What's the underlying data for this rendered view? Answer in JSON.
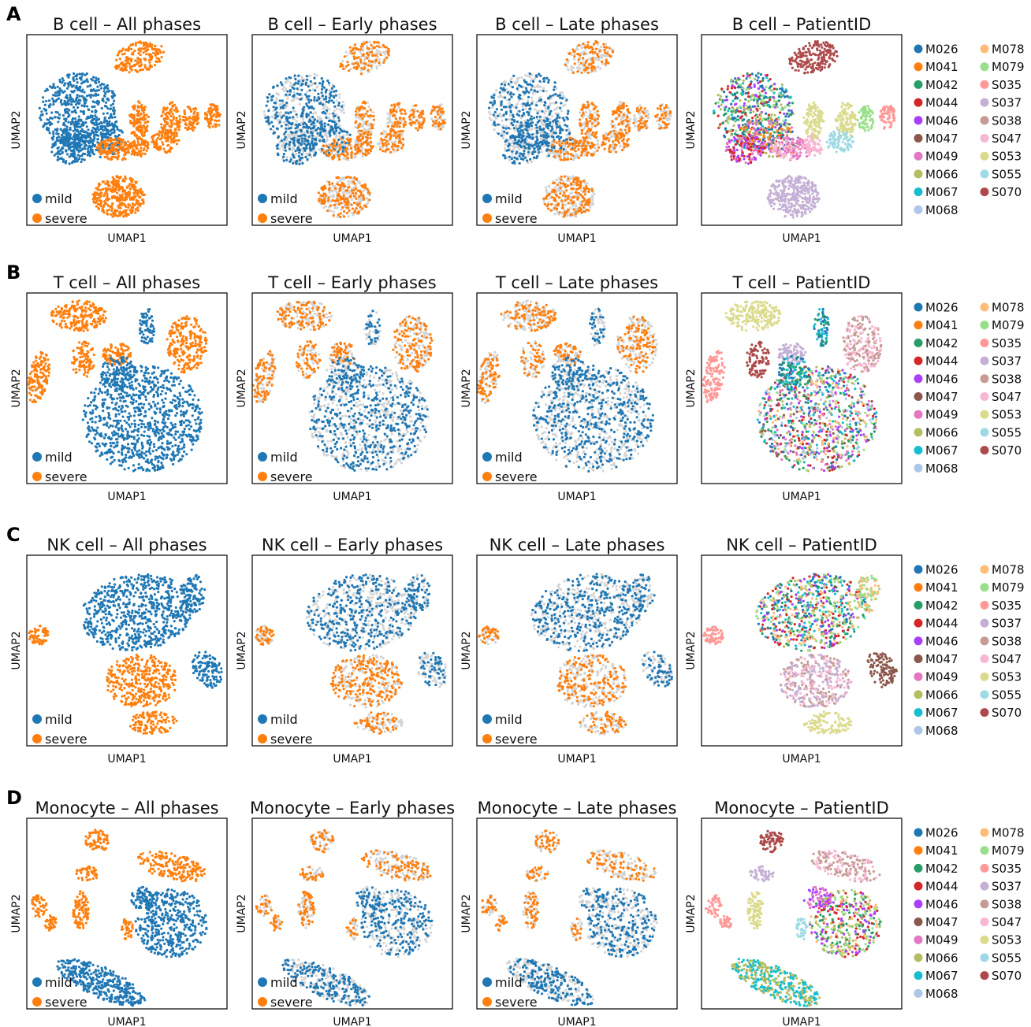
{
  "chart_data": {
    "type": "scatter",
    "xlabel": "UMAP1",
    "ylabel": "UMAP2",
    "condition_legend": [
      {
        "name": "mild",
        "color": "#1f77b4"
      },
      {
        "name": "severe",
        "color": "#ff7f0e"
      }
    ],
    "background_color": "#d3d3d3",
    "patients": [
      {
        "id": "M026",
        "color": "#1f77b4"
      },
      {
        "id": "M041",
        "color": "#ff7f0e"
      },
      {
        "id": "M042",
        "color": "#279e68"
      },
      {
        "id": "M044",
        "color": "#d62728"
      },
      {
        "id": "M046",
        "color": "#aa40fc"
      },
      {
        "id": "M047",
        "color": "#8c564b"
      },
      {
        "id": "M049",
        "color": "#e377c2"
      },
      {
        "id": "M066",
        "color": "#b5bd61"
      },
      {
        "id": "M067",
        "color": "#17becf"
      },
      {
        "id": "M068",
        "color": "#aec7e8"
      },
      {
        "id": "M078",
        "color": "#ffbb78"
      },
      {
        "id": "M079",
        "color": "#98df8a"
      },
      {
        "id": "S035",
        "color": "#ff9896"
      },
      {
        "id": "S037",
        "color": "#c5b0d5"
      },
      {
        "id": "S038",
        "color": "#c49c94"
      },
      {
        "id": "S047",
        "color": "#f7b6d2"
      },
      {
        "id": "S053",
        "color": "#dbdb8d"
      },
      {
        "id": "S055",
        "color": "#9edae5"
      },
      {
        "id": "S070",
        "color": "#ad494a"
      }
    ],
    "rows": [
      {
        "letter": "A",
        "titles": [
          "B cell – All phases",
          "B cell – Early phases",
          "B cell – Late phases",
          "B cell – PatientID"
        ]
      },
      {
        "letter": "B",
        "titles": [
          "T cell – All phases",
          "T cell – Early phases",
          "T cell – Late phases",
          "T cell – PatientID"
        ]
      },
      {
        "letter": "C",
        "titles": [
          "NK cell – All phases",
          "NK cell – Early phases",
          "NK cell – Late phases",
          "NK cell – PatientID"
        ]
      },
      {
        "letter": "D",
        "titles": [
          "Monocyte – All phases",
          "Monocyte – Early phases",
          "Monocyte – Late phases",
          "Monocyte – PatientID"
        ]
      }
    ]
  }
}
